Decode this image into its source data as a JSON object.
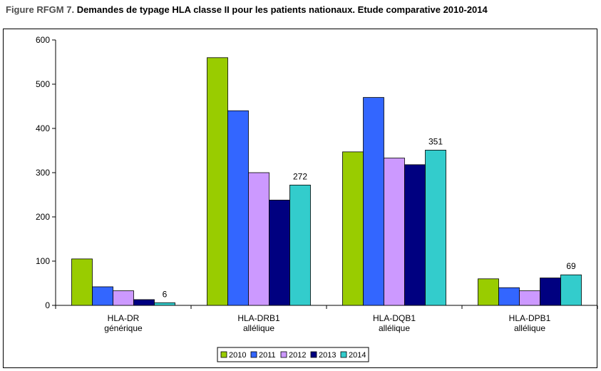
{
  "figure_label": "Figure RFGM 7.",
  "title": "Demandes de typage HLA classe II pour les patients nationaux. Etude comparative 2010-2014",
  "chart_data": {
    "type": "bar",
    "title": "Demandes de typage HLA classe II pour les patients nationaux. Etude comparative 2010-2014",
    "categories": [
      [
        "HLA-DR",
        "générique"
      ],
      [
        "HLA-DRB1",
        "allélique"
      ],
      [
        "HLA-DQB1",
        "allélique"
      ],
      [
        "HLA-DPB1",
        "allélique"
      ]
    ],
    "series": [
      {
        "name": "2010",
        "color": "#99cc00",
        "values": [
          105,
          560,
          347,
          60
        ]
      },
      {
        "name": "2011",
        "color": "#3366ff",
        "values": [
          42,
          440,
          470,
          40
        ]
      },
      {
        "name": "2012",
        "color": "#cc99ff",
        "values": [
          33,
          300,
          333,
          33
        ]
      },
      {
        "name": "2013",
        "color": "#000080",
        "values": [
          13,
          238,
          318,
          62
        ]
      },
      {
        "name": "2014",
        "color": "#33cccc",
        "values": [
          6,
          272,
          351,
          69
        ]
      }
    ],
    "data_labels": {
      "series": "2014",
      "values": [
        "6",
        "272",
        "351",
        "69"
      ]
    },
    "ylim": [
      0,
      600
    ],
    "yticks": [
      0,
      100,
      200,
      300,
      400,
      500,
      600
    ],
    "xlabel": "",
    "ylabel": "",
    "grid": false,
    "legend_position": "bottom-center"
  }
}
